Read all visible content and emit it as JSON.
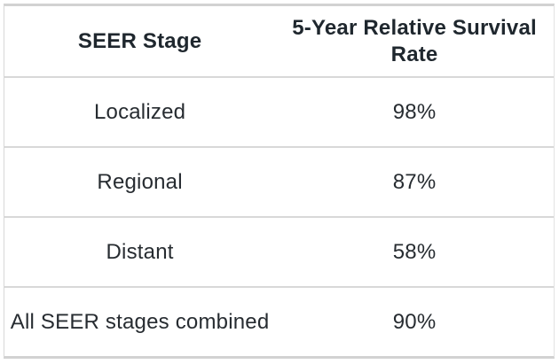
{
  "table": {
    "header": {
      "stage_label": "SEER Stage",
      "rate_label": "5-Year Relative Survival Rate"
    },
    "rows": [
      {
        "stage": "Localized",
        "rate": "98%"
      },
      {
        "stage": "Regional",
        "rate": "87%"
      },
      {
        "stage": "Distant",
        "rate": "58%"
      },
      {
        "stage": "All SEER stages combined",
        "rate": "90%"
      }
    ]
  },
  "colors": {
    "text": "#272c31",
    "header_text": "#1f272e",
    "border": "#d5d5d5",
    "background": "#ffffff"
  },
  "chart_data": {
    "type": "table",
    "title": "",
    "columns": [
      "SEER Stage",
      "5-Year Relative Survival Rate"
    ],
    "categories": [
      "Localized",
      "Regional",
      "Distant",
      "All SEER stages combined"
    ],
    "values": [
      98,
      87,
      58,
      90
    ],
    "value_unit": "%"
  }
}
